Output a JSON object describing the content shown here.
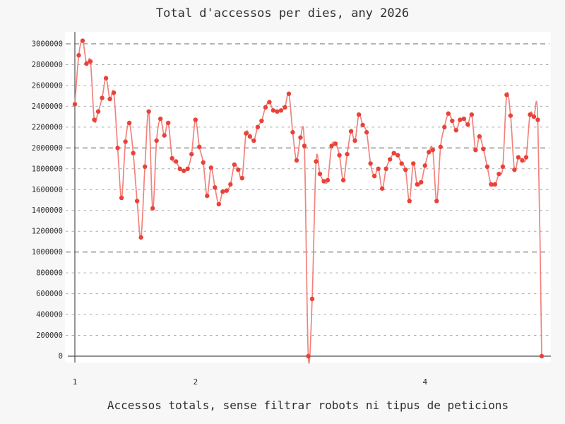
{
  "chart_data": {
    "type": "line",
    "title": "Total d'accessos per dies, any 2026",
    "xlabel": "Accessos totals, sense filtrar robots ni tipus de peticions",
    "ylabel": "",
    "line_style": "smooth",
    "marker": "circle",
    "legend": "none",
    "grid": "dashed",
    "n_days": 121,
    "x_start_day": 1,
    "xlim": [
      1,
      121
    ],
    "ylim": [
      0,
      3000000
    ],
    "x_ticks": [
      {
        "label": "1",
        "day": 1
      },
      {
        "label": "2",
        "day": 32
      },
      {
        "label": "4",
        "day": 91
      }
    ],
    "y_ticks": [
      0,
      200000,
      400000,
      600000,
      800000,
      1000000,
      1200000,
      1400000,
      1600000,
      1800000,
      2000000,
      2200000,
      2400000,
      2600000,
      2800000,
      3000000
    ],
    "y_major_every": 1000000,
    "values": [
      2420000,
      2890000,
      3030000,
      2810000,
      2830000,
      2270000,
      2350000,
      2480000,
      2670000,
      2470000,
      2530000,
      2000000,
      1520000,
      2060000,
      2240000,
      1950000,
      1490000,
      1140000,
      1820000,
      2350000,
      1420000,
      2070000,
      2280000,
      2120000,
      2240000,
      1900000,
      1870000,
      1800000,
      1780000,
      1800000,
      1940000,
      2270000,
      2010000,
      1860000,
      1540000,
      1810000,
      1620000,
      1460000,
      1580000,
      1590000,
      1650000,
      1840000,
      1790000,
      1710000,
      2140000,
      2110000,
      2070000,
      2200000,
      2260000,
      2390000,
      2440000,
      2360000,
      2350000,
      2360000,
      2390000,
      2520000,
      2150000,
      1880000,
      2100000,
      2020000,
      0,
      550000,
      1870000,
      1750000,
      1680000,
      1690000,
      2020000,
      2040000,
      1930000,
      1690000,
      1940000,
      2160000,
      2070000,
      2320000,
      2220000,
      2150000,
      1850000,
      1730000,
      1800000,
      1610000,
      1800000,
      1890000,
      1950000,
      1930000,
      1850000,
      1790000,
      1490000,
      1850000,
      1650000,
      1670000,
      1830000,
      1960000,
      1980000,
      1490000,
      2010000,
      2200000,
      2330000,
      2260000,
      2170000,
      2270000,
      2280000,
      2225000,
      2320000,
      1980000,
      2110000,
      1990000,
      1820000,
      1650000,
      1650000,
      1750000,
      1820000,
      2510000,
      2310000,
      1790000,
      1910000,
      1880000,
      1910000,
      2320000,
      2300000,
      2270000,
      0
    ],
    "colors": {
      "line": "#f2837d",
      "marker": "#e8423a",
      "axis": "#4f4f4f",
      "grid_major": "#6a6a6a",
      "grid_minor": "#ababab",
      "text": "#2e2e2e",
      "plot_bg": "#ffffff",
      "page_bg": "#f7f7f7"
    }
  }
}
